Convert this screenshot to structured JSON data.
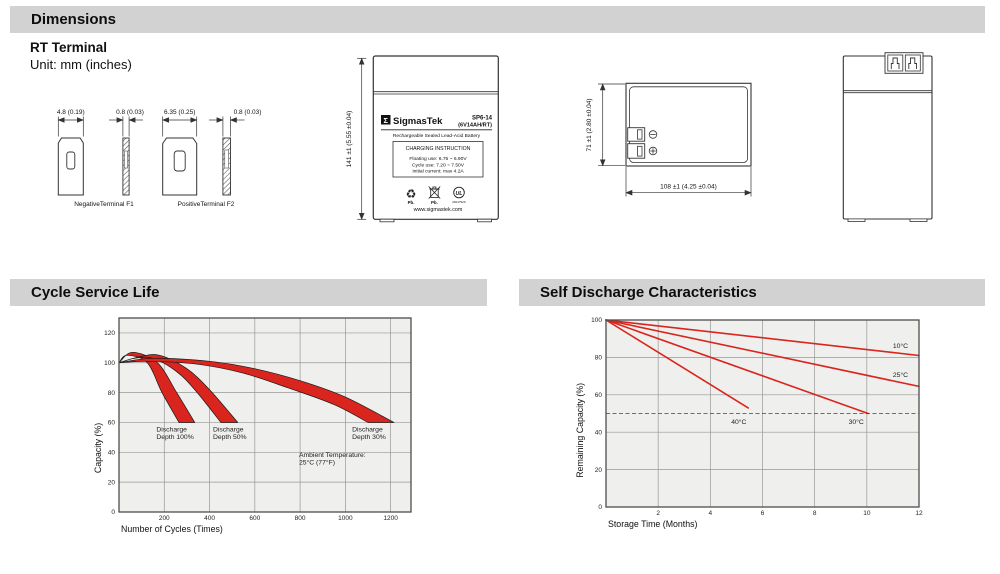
{
  "sections": {
    "dimensions": {
      "title": "Dimensions",
      "subtitle": "RT Terminal",
      "unit_note": "Unit: mm (inches)"
    },
    "cycle_service_life": {
      "title": "Cycle Service Life"
    },
    "self_discharge": {
      "title": "Self Discharge Characteristics"
    }
  },
  "terminal_drawing": {
    "negative": {
      "width_dim": "4.8 (0.19)",
      "thickness_dim": "0.8 (0.03)",
      "caption": "NegativeTerminal F1"
    },
    "positive": {
      "width_dim": "6.35 (0.25)",
      "thickness_dim": "0.8 (0.03)",
      "caption": "PositiveTerminal F2"
    }
  },
  "front_view": {
    "height_dim": "141 ±1 (5.55 ±0.04)",
    "label": {
      "logo_glyph": "Σ",
      "brand": "SigmasTek",
      "model": "SP6-14",
      "spec": "(6V14AH/RT)",
      "type_line": "Rechargeable Sealed Lead-Acid Battery",
      "charging_title": "CHARGING INSTRUCTION",
      "charging_lines": [
        "Floating use: 6.75 ~ 6.90V",
        "Cycle use: 7.20 ~ 7.50V",
        "Initial current: max 4.2A"
      ],
      "recycle_glyph": "♻",
      "pb_labels": [
        "Pb.",
        "Pb."
      ],
      "ul_text": "UL",
      "ul_file": "MH47929",
      "website": "www.sigmastek.com"
    }
  },
  "top_view": {
    "height_dim": "71 ±1 (2.80 ±0.04)",
    "width_dim": "108 ±1 (4.25 ±0.04)"
  },
  "colors": {
    "accent_red": "#d9251d",
    "header_bar": "#d2d2d2",
    "plot_bg": "#efefed",
    "grid": "#979797",
    "plot_border": "#4d4d4d"
  },
  "chart_data": [
    {
      "id": "cycle-service-life",
      "type": "area",
      "title": "Cycle Service Life",
      "xlabel": "Number of Cycles (Times)",
      "ylabel": "Capacity (%)",
      "xlim": [
        0,
        1290
      ],
      "ylim": [
        0,
        130
      ],
      "xticks": [
        0,
        200,
        400,
        600,
        800,
        1000,
        1200
      ],
      "yticks": [
        0,
        20,
        40,
        60,
        80,
        100,
        120
      ],
      "grid": true,
      "legend_position": "none",
      "bands": [
        {
          "name": "Discharge Depth 100%",
          "upper": [
            [
              0,
              100
            ],
            [
              60,
              107
            ],
            [
              170,
              100
            ],
            [
              255,
              80
            ],
            [
              335,
              60
            ]
          ],
          "lower": [
            [
              0,
              100
            ],
            [
              35,
              105
            ],
            [
              125,
              100
            ],
            [
              190,
              80
            ],
            [
              265,
              60
            ]
          ]
        },
        {
          "name": "Discharge Depth 50%",
          "upper": [
            [
              0,
              100
            ],
            [
              90,
              104
            ],
            [
              180,
              105
            ],
            [
              300,
              96
            ],
            [
              400,
              82
            ],
            [
              525,
              60
            ]
          ],
          "lower": [
            [
              0,
              100
            ],
            [
              70,
              103
            ],
            [
              150,
              103
            ],
            [
              255,
              94
            ],
            [
              340,
              81
            ],
            [
              450,
              60
            ]
          ]
        },
        {
          "name": "Discharge Depth 30%",
          "upper": [
            [
              0,
              100
            ],
            [
              150,
              103
            ],
            [
              400,
              101
            ],
            [
              600,
              96
            ],
            [
              800,
              88
            ],
            [
              1000,
              77
            ],
            [
              1215,
              60
            ]
          ],
          "lower": [
            [
              0,
              100
            ],
            [
              130,
              101
            ],
            [
              350,
              99
            ],
            [
              550,
              93
            ],
            [
              750,
              83
            ],
            [
              950,
              72
            ],
            [
              1100,
              60
            ]
          ]
        }
      ],
      "annotations": [
        {
          "lines": [
            "Discharge",
            "Depth 100%"
          ],
          "x": 165,
          "y": 54
        },
        {
          "lines": [
            "Discharge",
            "Depth 50%"
          ],
          "x": 415,
          "y": 54
        },
        {
          "lines": [
            "Discharge",
            "Depth 30%"
          ],
          "x": 1030,
          "y": 54
        },
        {
          "lines": [
            "Ambient Temperature:",
            "25°C (77°F)"
          ],
          "x": 795,
          "y": 37
        }
      ]
    },
    {
      "id": "self-discharge-characteristics",
      "type": "line",
      "title": "Self Discharge Characteristics",
      "xlabel": "Storage Time (Months)",
      "ylabel": "Remaining Capacity (%)",
      "xlim": [
        0,
        12
      ],
      "ylim": [
        0,
        100
      ],
      "xticks": [
        0,
        2,
        4,
        6,
        8,
        10,
        12
      ],
      "yticks": [
        0,
        20,
        40,
        60,
        80,
        100
      ],
      "grid": true,
      "legend_position": "inline",
      "series": [
        {
          "name": "10°C",
          "points": [
            [
              0,
              100
            ],
            [
              12,
              81
            ]
          ],
          "label_pos": [
            11.0,
            85
          ]
        },
        {
          "name": "25°C",
          "points": [
            [
              0,
              100
            ],
            [
              12,
              64.5
            ]
          ],
          "label_pos": [
            11.0,
            69.5
          ]
        },
        {
          "name": "30°C",
          "points": [
            [
              0,
              100
            ],
            [
              10.05,
              50
            ]
          ],
          "label_pos": [
            9.3,
            44.5
          ]
        },
        {
          "name": "40°C",
          "points": [
            [
              0,
              100
            ],
            [
              5.45,
              53
            ]
          ],
          "label_pos": [
            4.8,
            44.5
          ]
        }
      ],
      "reference_line": {
        "y": 50,
        "style": "dashed"
      }
    }
  ]
}
